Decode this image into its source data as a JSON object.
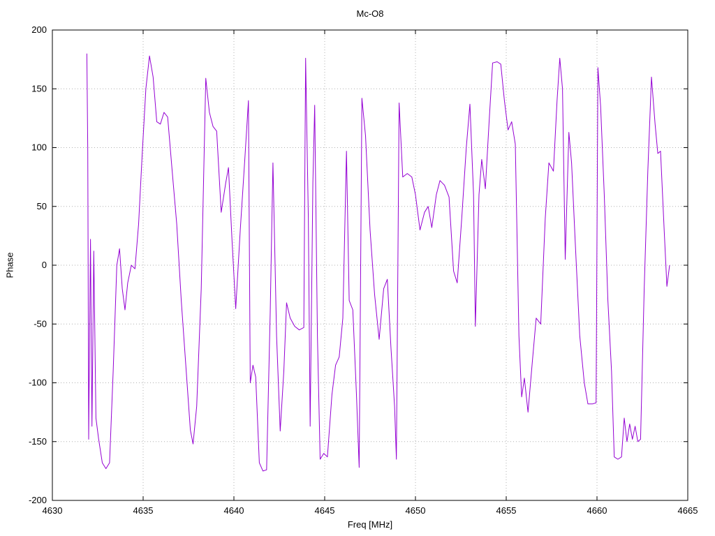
{
  "chart_data": {
    "type": "line",
    "title": "Mc-O8",
    "xlabel": "Freq [MHz]",
    "ylabel": "Phase",
    "xlim": [
      4630,
      4665
    ],
    "ylim": [
      -200,
      200
    ],
    "xticks": [
      4630,
      4635,
      4640,
      4645,
      4650,
      4655,
      4660,
      4665
    ],
    "yticks": [
      -200,
      -150,
      -100,
      -50,
      0,
      50,
      100,
      150,
      200
    ],
    "grid": true,
    "legend_position": "none",
    "line_color": "#9400D3",
    "grid_color": "#b0b0b0",
    "series": [
      {
        "name": "phase",
        "points": [
          [
            4631.9,
            180
          ],
          [
            4631.95,
            97
          ],
          [
            4632.0,
            -148
          ],
          [
            4632.1,
            22
          ],
          [
            4632.18,
            -137
          ],
          [
            4632.28,
            12
          ],
          [
            4632.4,
            -130
          ],
          [
            4632.55,
            -148
          ],
          [
            4632.75,
            -168
          ],
          [
            4632.95,
            -173
          ],
          [
            4633.15,
            -168
          ],
          [
            4633.35,
            -90
          ],
          [
            4633.55,
            0
          ],
          [
            4633.7,
            14
          ],
          [
            4633.85,
            -20
          ],
          [
            4634.0,
            -38
          ],
          [
            4634.15,
            -15
          ],
          [
            4634.35,
            0
          ],
          [
            4634.55,
            -3
          ],
          [
            4634.75,
            35
          ],
          [
            4634.95,
            95
          ],
          [
            4635.15,
            150
          ],
          [
            4635.35,
            178
          ],
          [
            4635.55,
            160
          ],
          [
            4635.75,
            122
          ],
          [
            4635.95,
            120
          ],
          [
            4636.15,
            130
          ],
          [
            4636.35,
            126
          ],
          [
            4636.6,
            80
          ],
          [
            4636.85,
            35
          ],
          [
            4637.1,
            -30
          ],
          [
            4637.35,
            -85
          ],
          [
            4637.6,
            -140
          ],
          [
            4637.75,
            -152
          ],
          [
            4637.95,
            -120
          ],
          [
            4638.2,
            -20
          ],
          [
            4638.45,
            159
          ],
          [
            4638.65,
            130
          ],
          [
            4638.85,
            118
          ],
          [
            4639.05,
            114
          ],
          [
            4639.3,
            45
          ],
          [
            4639.55,
            70
          ],
          [
            4639.7,
            83
          ],
          [
            4639.9,
            20
          ],
          [
            4640.1,
            -37
          ],
          [
            4640.35,
            30
          ],
          [
            4640.6,
            90
          ],
          [
            4640.8,
            140
          ],
          [
            4640.9,
            -100
          ],
          [
            4641.05,
            -85
          ],
          [
            4641.2,
            -95
          ],
          [
            4641.4,
            -168
          ],
          [
            4641.6,
            -175
          ],
          [
            4641.8,
            -174
          ],
          [
            4642.0,
            -40
          ],
          [
            4642.15,
            87
          ],
          [
            4642.35,
            -60
          ],
          [
            4642.55,
            -141
          ],
          [
            4642.75,
            -90
          ],
          [
            4642.9,
            -32
          ],
          [
            4643.1,
            -45
          ],
          [
            4643.35,
            -52
          ],
          [
            4643.6,
            -55
          ],
          [
            4643.85,
            -53
          ],
          [
            4643.95,
            176
          ],
          [
            4644.1,
            40
          ],
          [
            4644.2,
            -137
          ],
          [
            4644.35,
            70
          ],
          [
            4644.45,
            136
          ],
          [
            4644.6,
            -60
          ],
          [
            4644.75,
            -165
          ],
          [
            4644.95,
            -160
          ],
          [
            4645.15,
            -163
          ],
          [
            4645.4,
            -110
          ],
          [
            4645.6,
            -85
          ],
          [
            4645.8,
            -78
          ],
          [
            4646.0,
            -45
          ],
          [
            4646.2,
            97
          ],
          [
            4646.35,
            -30
          ],
          [
            4646.55,
            -38
          ],
          [
            4646.75,
            -110
          ],
          [
            4646.9,
            -172
          ],
          [
            4647.05,
            142
          ],
          [
            4647.25,
            110
          ],
          [
            4647.5,
            30
          ],
          [
            4647.75,
            -25
          ],
          [
            4648.0,
            -63
          ],
          [
            4648.25,
            -20
          ],
          [
            4648.45,
            -12
          ],
          [
            4648.65,
            -70
          ],
          [
            4648.85,
            -120
          ],
          [
            4648.95,
            -165
          ],
          [
            4649.1,
            138
          ],
          [
            4649.3,
            75
          ],
          [
            4649.55,
            78
          ],
          [
            4649.8,
            75
          ],
          [
            4650.0,
            60
          ],
          [
            4650.25,
            30
          ],
          [
            4650.5,
            45
          ],
          [
            4650.7,
            50
          ],
          [
            4650.9,
            32
          ],
          [
            4651.15,
            60
          ],
          [
            4651.35,
            72
          ],
          [
            4651.6,
            68
          ],
          [
            4651.85,
            58
          ],
          [
            4652.1,
            -5
          ],
          [
            4652.3,
            -15
          ],
          [
            4652.55,
            40
          ],
          [
            4652.8,
            100
          ],
          [
            4653.0,
            137
          ],
          [
            4653.2,
            60
          ],
          [
            4653.3,
            -52
          ],
          [
            4653.5,
            60
          ],
          [
            4653.65,
            90
          ],
          [
            4653.85,
            65
          ],
          [
            4654.05,
            120
          ],
          [
            4654.25,
            172
          ],
          [
            4654.5,
            173
          ],
          [
            4654.7,
            171
          ],
          [
            4654.9,
            140
          ],
          [
            4655.1,
            115
          ],
          [
            4655.3,
            122
          ],
          [
            4655.5,
            103
          ],
          [
            4655.7,
            -60
          ],
          [
            4655.85,
            -112
          ],
          [
            4656.0,
            -96
          ],
          [
            4656.2,
            -125
          ],
          [
            4656.45,
            -80
          ],
          [
            4656.65,
            -45
          ],
          [
            4656.9,
            -50
          ],
          [
            4657.15,
            40
          ],
          [
            4657.35,
            87
          ],
          [
            4657.6,
            80
          ],
          [
            4657.8,
            140
          ],
          [
            4657.95,
            176
          ],
          [
            4658.1,
            150
          ],
          [
            4658.25,
            5
          ],
          [
            4658.45,
            113
          ],
          [
            4658.6,
            87
          ],
          [
            4658.8,
            20
          ],
          [
            4659.05,
            -60
          ],
          [
            4659.3,
            -100
          ],
          [
            4659.5,
            -118
          ],
          [
            4659.75,
            -118
          ],
          [
            4659.95,
            -117
          ],
          [
            4660.05,
            168
          ],
          [
            4660.2,
            135
          ],
          [
            4660.4,
            60
          ],
          [
            4660.6,
            -30
          ],
          [
            4660.8,
            -90
          ],
          [
            4660.95,
            -163
          ],
          [
            4661.15,
            -165
          ],
          [
            4661.35,
            -163
          ],
          [
            4661.5,
            -130
          ],
          [
            4661.65,
            -150
          ],
          [
            4661.8,
            -135
          ],
          [
            4661.95,
            -148
          ],
          [
            4662.1,
            -137
          ],
          [
            4662.25,
            -150
          ],
          [
            4662.4,
            -148
          ],
          [
            4662.6,
            -20
          ],
          [
            4662.8,
            80
          ],
          [
            4663.0,
            160
          ],
          [
            4663.2,
            120
          ],
          [
            4663.35,
            95
          ],
          [
            4663.5,
            97
          ],
          [
            4663.7,
            30
          ],
          [
            4663.85,
            -18
          ],
          [
            4664.0,
            0
          ]
        ]
      }
    ]
  }
}
